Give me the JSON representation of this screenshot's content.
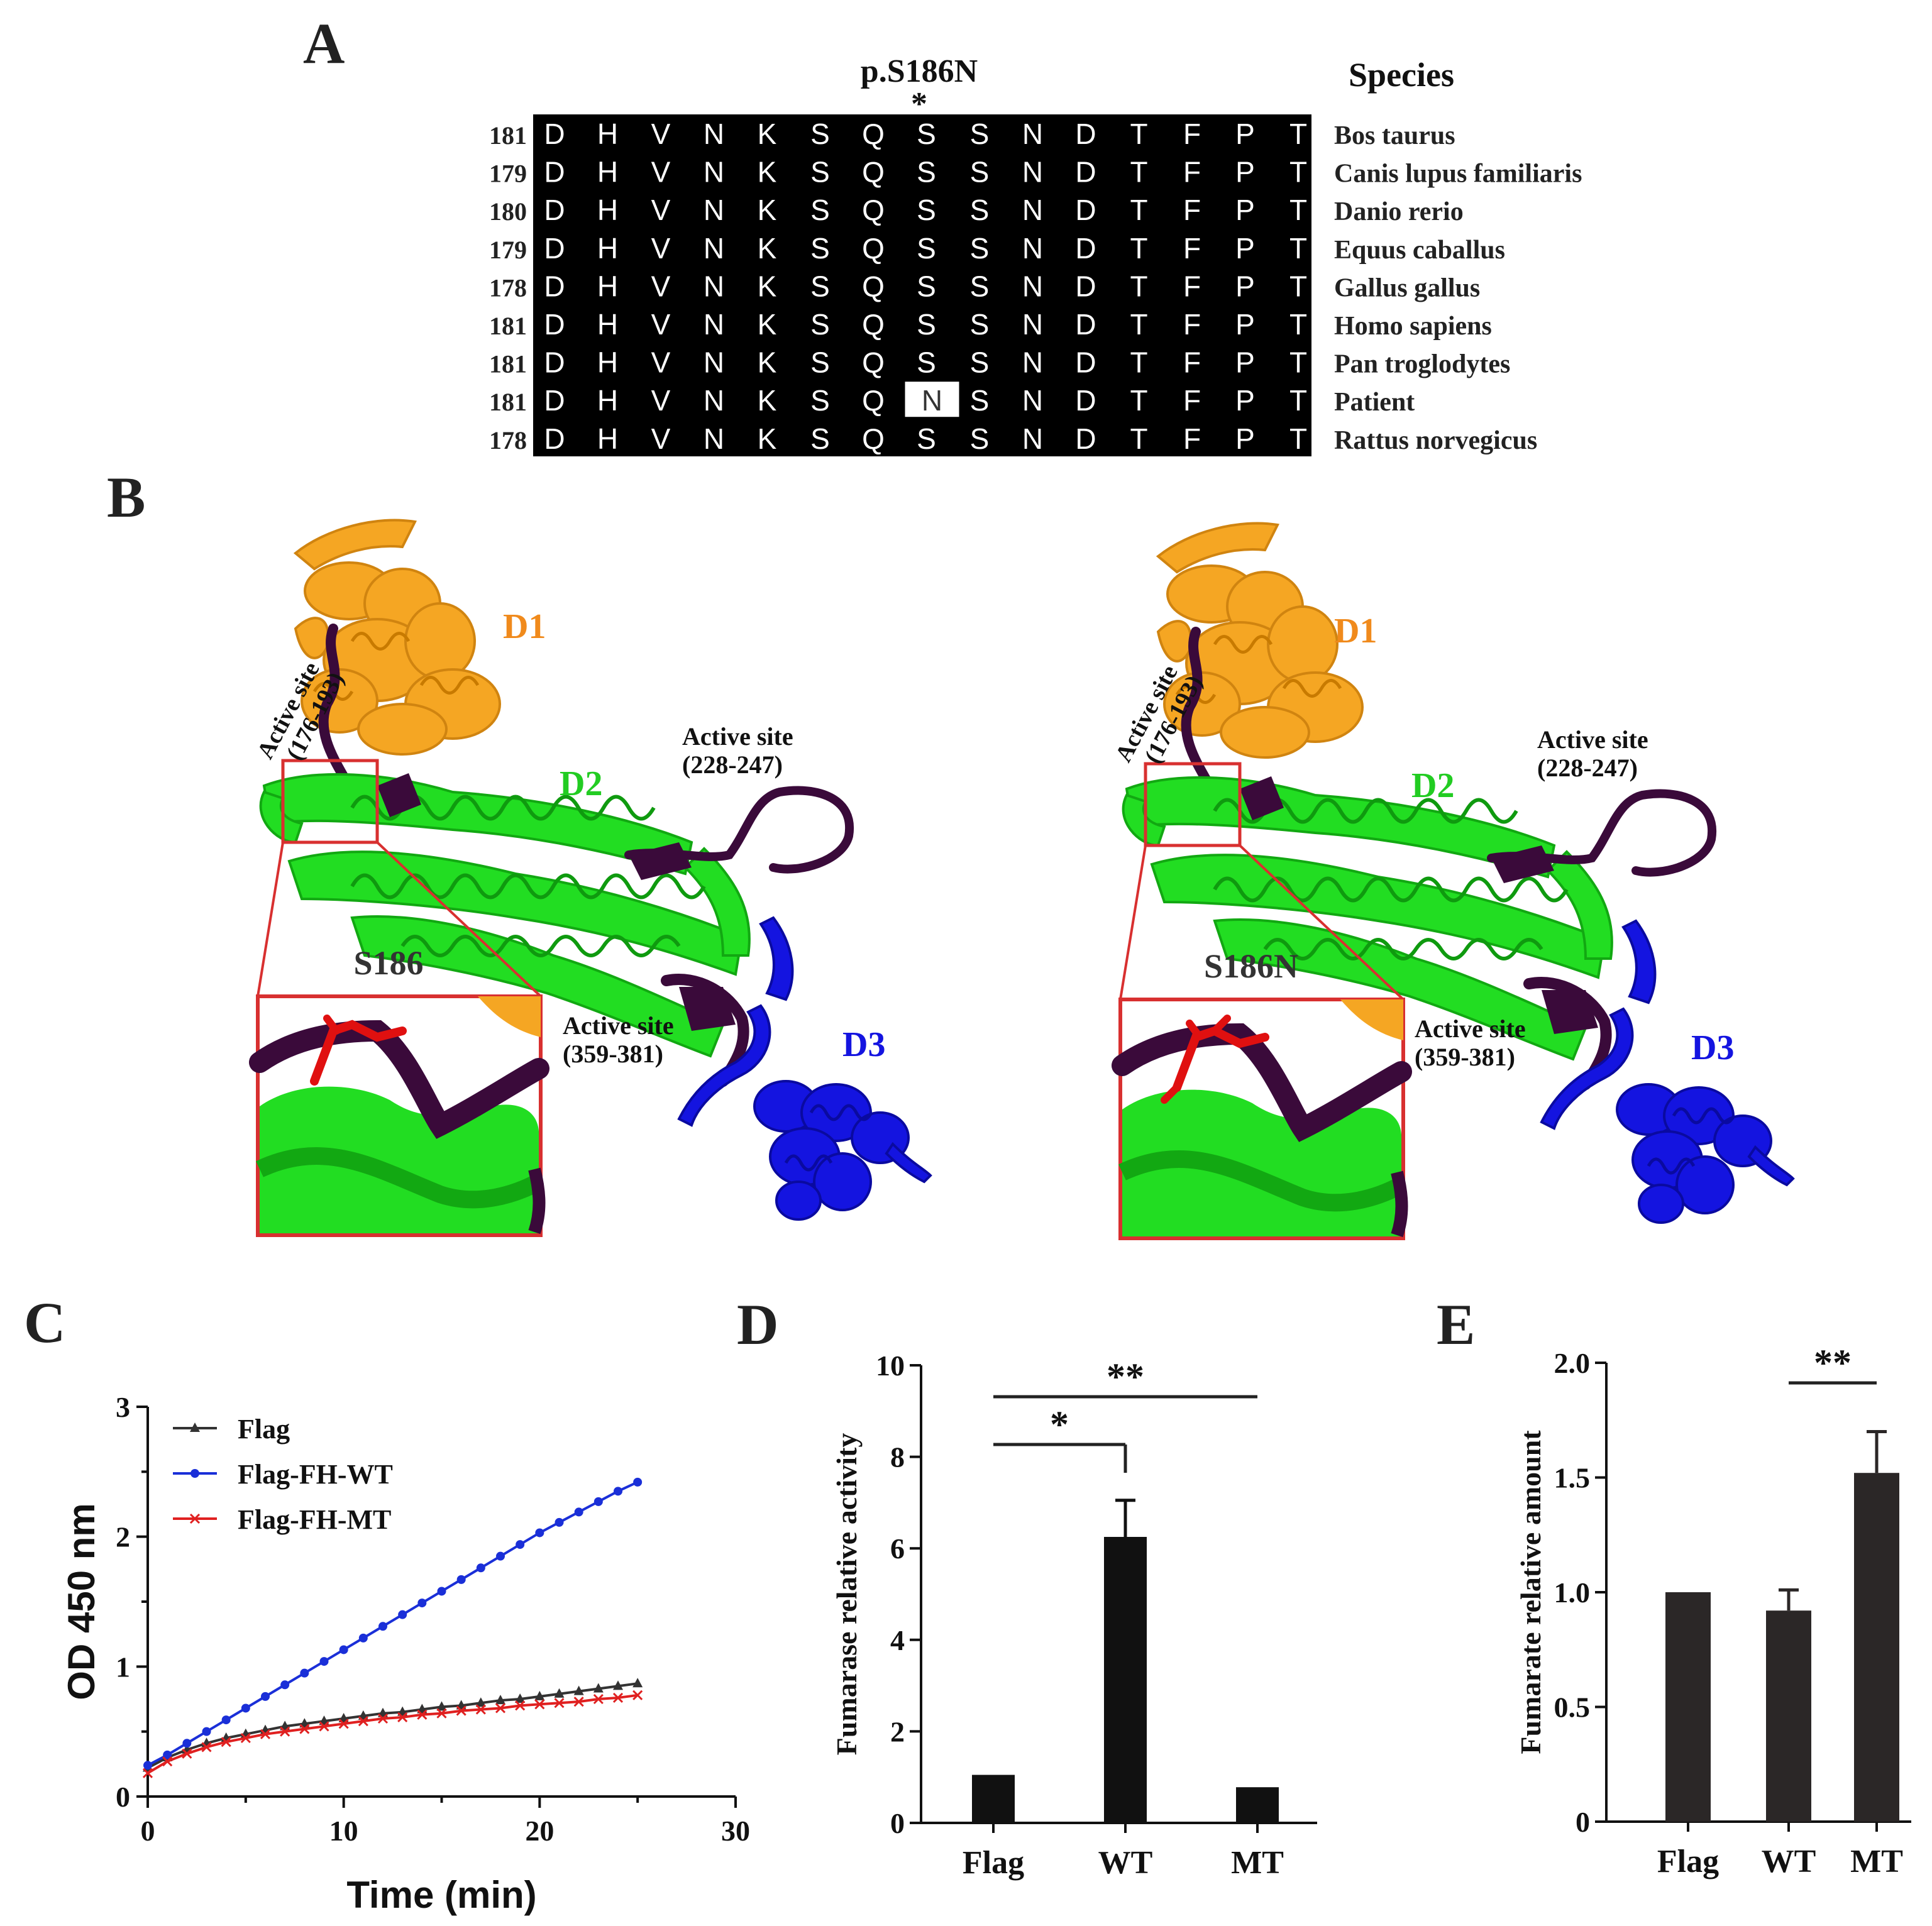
{
  "panel_labels": {
    "A": "A",
    "B": "B",
    "C": "C",
    "D": "D",
    "E": "E"
  },
  "alignment": {
    "mutation_label": "p.S186N",
    "star": "*",
    "species_header": "Species",
    "rows": [
      {
        "start": "181",
        "species": "Bos taurus",
        "seq": [
          "D",
          "H",
          "V",
          "N",
          "K",
          "S",
          "Q",
          "S",
          "S",
          "N",
          "D",
          "T",
          "F",
          "P",
          "T"
        ]
      },
      {
        "start": "179",
        "species": "Canis lupus familiaris",
        "seq": [
          "D",
          "H",
          "V",
          "N",
          "K",
          "S",
          "Q",
          "S",
          "S",
          "N",
          "D",
          "T",
          "F",
          "P",
          "T"
        ]
      },
      {
        "start": "180",
        "species": "Danio rerio",
        "seq": [
          "D",
          "H",
          "V",
          "N",
          "K",
          "S",
          "Q",
          "S",
          "S",
          "N",
          "D",
          "T",
          "F",
          "P",
          "T"
        ]
      },
      {
        "start": "179",
        "species": "Equus caballus",
        "seq": [
          "D",
          "H",
          "V",
          "N",
          "K",
          "S",
          "Q",
          "S",
          "S",
          "N",
          "D",
          "T",
          "F",
          "P",
          "T"
        ]
      },
      {
        "start": "178",
        "species": "Gallus gallus",
        "seq": [
          "D",
          "H",
          "V",
          "N",
          "K",
          "S",
          "Q",
          "S",
          "S",
          "N",
          "D",
          "T",
          "F",
          "P",
          "T"
        ]
      },
      {
        "start": "181",
        "species": "Homo sapiens",
        "seq": [
          "D",
          "H",
          "V",
          "N",
          "K",
          "S",
          "Q",
          "S",
          "S",
          "N",
          "D",
          "T",
          "F",
          "P",
          "T"
        ]
      },
      {
        "start": "181",
        "species": "Pan troglodytes",
        "seq": [
          "D",
          "H",
          "V",
          "N",
          "K",
          "S",
          "Q",
          "S",
          "S",
          "N",
          "D",
          "T",
          "F",
          "P",
          "T"
        ]
      },
      {
        "start": "181",
        "species": "Patient",
        "seq": [
          "D",
          "H",
          "V",
          "N",
          "K",
          "S",
          "Q",
          "N",
          "S",
          "N",
          "D",
          "T",
          "F",
          "P",
          "T"
        ],
        "highlight_index": 7
      },
      {
        "start": "178",
        "species": "Rattus norvegicus",
        "seq": [
          "D",
          "H",
          "V",
          "N",
          "K",
          "S",
          "Q",
          "S",
          "S",
          "N",
          "D",
          "T",
          "F",
          "P",
          "T"
        ]
      }
    ]
  },
  "structure": {
    "colors": {
      "d1": "#f5a623",
      "d2": "#22dd22",
      "d3": "#1414e0",
      "active": "#3a0a3a",
      "residue": "#e01010",
      "box": "#d83030"
    },
    "left": {
      "d1": "D1",
      "d2": "D2",
      "d3": "D3",
      "active_site_word": "Active site",
      "active_1": "(176-193)",
      "active_2": "(228-247)",
      "active_3": "(359-381)",
      "zoom_label": "S186"
    },
    "right": {
      "d1": "D1",
      "d2": "D2",
      "d3": "D3",
      "active_site_word": "Active site",
      "active_1": "(176-193)",
      "active_2": "(228-247)",
      "active_3": "(359-381)",
      "zoom_label": "S186N"
    }
  },
  "chart_data": [
    {
      "type": "line",
      "panel": "C",
      "xlabel": "Time (min)",
      "ylabel": "OD 450 nm",
      "xlim": [
        0,
        30
      ],
      "ylim": [
        0,
        3
      ],
      "xticks": [
        0,
        10,
        20,
        30
      ],
      "yticks": [
        0,
        1,
        2,
        3
      ],
      "legend_position": "top-left",
      "x": [
        0,
        1,
        2,
        3,
        4,
        5,
        6,
        7,
        8,
        9,
        10,
        11,
        12,
        13,
        14,
        15,
        16,
        17,
        18,
        19,
        20,
        21,
        22,
        23,
        24,
        25
      ],
      "series": [
        {
          "name": "Flag",
          "color": "#333333",
          "marker": "triangle",
          "values": [
            0.22,
            0.3,
            0.36,
            0.41,
            0.45,
            0.48,
            0.51,
            0.54,
            0.56,
            0.58,
            0.6,
            0.62,
            0.64,
            0.65,
            0.67,
            0.69,
            0.7,
            0.72,
            0.74,
            0.75,
            0.77,
            0.79,
            0.81,
            0.83,
            0.85,
            0.87
          ]
        },
        {
          "name": "Flag-FH-WT",
          "color": "#1a2fd8",
          "marker": "circle",
          "values": [
            0.24,
            0.32,
            0.41,
            0.5,
            0.59,
            0.68,
            0.77,
            0.86,
            0.95,
            1.04,
            1.13,
            1.22,
            1.31,
            1.4,
            1.49,
            1.58,
            1.67,
            1.76,
            1.85,
            1.94,
            2.03,
            2.11,
            2.19,
            2.27,
            2.35,
            2.42
          ]
        },
        {
          "name": "Flag-FH-MT",
          "color": "#e02020",
          "marker": "x",
          "values": [
            0.18,
            0.27,
            0.33,
            0.38,
            0.42,
            0.45,
            0.48,
            0.5,
            0.52,
            0.54,
            0.56,
            0.58,
            0.6,
            0.61,
            0.63,
            0.64,
            0.66,
            0.67,
            0.68,
            0.7,
            0.71,
            0.72,
            0.73,
            0.75,
            0.76,
            0.78
          ]
        }
      ]
    },
    {
      "type": "bar",
      "panel": "D",
      "ylabel": "Fumarase  relative  activity",
      "categories": [
        "Flag",
        "WT",
        "MT"
      ],
      "values": [
        1.05,
        6.25,
        0.78
      ],
      "errors": [
        0,
        0.8,
        0
      ],
      "ylim": [
        0,
        10
      ],
      "yticks": [
        0,
        2,
        4,
        6,
        8,
        10
      ],
      "bar_color": "#111111",
      "significance": [
        {
          "from": "Flag",
          "to": "WT",
          "label": "*"
        },
        {
          "from": "Flag",
          "to": "MT",
          "label": "**"
        }
      ]
    },
    {
      "type": "bar",
      "panel": "E",
      "ylabel": "Fumarate  relative  amount",
      "categories": [
        "Flag",
        "WT",
        "MT"
      ],
      "values": [
        1.0,
        0.92,
        1.52
      ],
      "errors": [
        0,
        0.09,
        0.18
      ],
      "ylim": [
        0,
        2.0
      ],
      "yticks": [
        "0",
        "0.5",
        "1.0",
        "1.5",
        "2.0"
      ],
      "bar_color": "#2b2727",
      "significance": [
        {
          "from": "WT",
          "to": "MT",
          "label": "**"
        }
      ]
    }
  ]
}
